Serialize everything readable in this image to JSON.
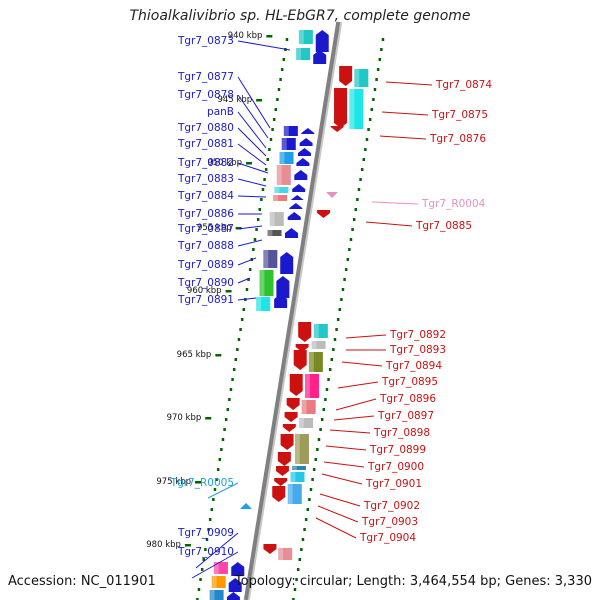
{
  "title": "Thioalkalivibrio sp. HL-EbGR7, complete genome",
  "accession": "Accession: NC_011901",
  "summary": "Topology: circular; Length: 3,464,554 bp; Genes: 3,330",
  "colors": {
    "minus_strand": "#1a1acc",
    "plus_strand": "#cc1111",
    "rrna_minus": "#1fa0e0",
    "rrna_plus": "#e890c0",
    "backbone": "#808080",
    "tick": "#006600"
  },
  "kbp_ticks": [
    {
      "label": "940 kbp"
    },
    {
      "label": "945 kbp"
    },
    {
      "label": "950 kbp"
    },
    {
      "label": "955 kbp"
    },
    {
      "label": "960 kbp"
    },
    {
      "label": "965 kbp"
    },
    {
      "label": "970 kbp"
    },
    {
      "label": "975 kbp"
    },
    {
      "label": "980 kbp"
    }
  ],
  "left_genes": [
    "Tgr7_0873",
    "Tgr7_0877",
    "Tgr7_0878",
    "panB",
    "Tgr7_0880",
    "Tgr7_0881",
    "Tgr7_0882",
    "Tgr7_0883",
    "Tgr7_0884",
    "Tgr7_0886",
    "Tgr7_0887",
    "Tgr7_0888",
    "Tgr7_0889",
    "Tgr7_0890",
    "Tgr7_0891",
    "Tgr7_R0005",
    "Tgr7_0909",
    "Tgr7_0910"
  ],
  "right_genes": [
    "Tgr7_0874",
    "Tgr7_0875",
    "Tgr7_0876",
    "Tgr7_R0004",
    "Tgr7_0885",
    "Tgr7_0892",
    "Tgr7_0893",
    "Tgr7_0894",
    "Tgr7_0895",
    "Tgr7_0896",
    "Tgr7_0897",
    "Tgr7_0898",
    "Tgr7_0899",
    "Tgr7_0900",
    "Tgr7_0901",
    "Tgr7_0902",
    "Tgr7_0903",
    "Tgr7_0904"
  ]
}
